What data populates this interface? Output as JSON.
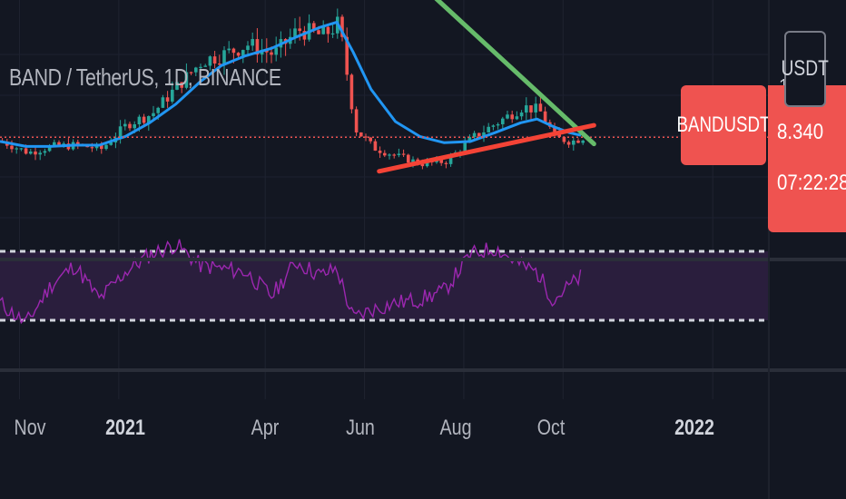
{
  "header": {
    "symbol_title": "BAND / TetherUS, 1D, BINANCE",
    "currency": "USDT",
    "ticker": "BANDUSDT",
    "last_price": "8.340",
    "countdown": "07:22:28",
    "scale_label": "1"
  },
  "colors": {
    "background": "#131722",
    "candle_up": "#26a69a",
    "candle_down": "#ef5350",
    "ma_line": "#2196f3",
    "resistance_line": "#66bb6a",
    "support_line": "#f44336",
    "rsi_line": "#9c27b0",
    "rsi_band": "#2a1e3d",
    "price_line": "#ef5350"
  },
  "chart_data": [
    {
      "type": "line",
      "title": "BAND / TetherUS, 1D, BINANCE",
      "x_ticks": [
        "Nov",
        "2021",
        "Apr",
        "Jun",
        "Aug",
        "Oct",
        "2022"
      ],
      "series": [
        {
          "name": "",
          "kind": "price",
          "x": [
            "2020-10-20",
            "2020-11-05",
            "2020-11-20",
            "2020-12-05",
            "2020-12-20",
            "2021-01-05",
            "2021-01-20",
            "2021-02-05",
            "2021-02-20",
            "2021-03-05",
            "2021-03-20",
            "2021-04-05",
            "2021-04-20",
            "2021-05-05",
            "2021-05-15",
            "2021-05-25",
            "2021-06-05",
            "2021-06-20",
            "2021-07-05",
            "2021-07-20",
            "2021-08-05",
            "2021-08-20",
            "2021-09-05",
            "2021-09-15",
            "2021-09-25",
            "2021-10-05",
            "2021-10-12"
          ],
          "values": [
            8.0,
            7.1,
            7.6,
            7.7,
            7.4,
            9.4,
            10.2,
            12.5,
            14.5,
            15.0,
            15.8,
            15.0,
            17.0,
            16.5,
            17.5,
            9.0,
            7.5,
            6.8,
            6.2,
            6.4,
            8.3,
            9.5,
            10.8,
            10.5,
            8.3,
            8.0,
            8.34
          ]
        },
        {
          "name": "",
          "kind": "moving-average",
          "x": [
            "2020-10-20",
            "2020-11-05",
            "2020-11-20",
            "2020-12-05",
            "2020-12-20",
            "2021-01-05",
            "2021-01-20",
            "2021-02-05",
            "2021-02-20",
            "2021-03-05",
            "2021-03-20",
            "2021-04-05",
            "2021-04-20",
            "2021-05-05",
            "2021-05-15",
            "2021-05-25",
            "2021-06-05",
            "2021-06-20",
            "2021-07-05",
            "2021-07-20",
            "2021-08-05",
            "2021-08-20",
            "2021-09-05",
            "2021-09-15",
            "2021-09-25",
            "2021-10-05",
            "2021-10-12"
          ],
          "values": [
            8.0,
            7.6,
            7.6,
            7.7,
            7.7,
            8.4,
            9.5,
            11.0,
            12.8,
            14.1,
            14.9,
            15.5,
            16.4,
            17.2,
            17.6,
            15.2,
            12.2,
            9.6,
            8.4,
            7.9,
            8.0,
            8.7,
            9.5,
            9.8,
            9.2,
            8.7,
            8.5
          ]
        }
      ],
      "annotations": [
        {
          "name": "",
          "kind": "descending-trendline",
          "x": [
            "2021-07-15",
            "2021-10-20"
          ],
          "values": [
            19.5,
            7.8
          ]
        },
        {
          "name": "",
          "kind": "ascending-trendline",
          "x": [
            "2021-06-10",
            "2021-10-20"
          ],
          "values": [
            5.6,
            9.3
          ]
        },
        {
          "name": "",
          "kind": "last-price-line",
          "value": 8.34
        }
      ]
    },
    {
      "type": "line",
      "title": "",
      "ylim": [
        0,
        100
      ],
      "bands": [
        70,
        30
      ],
      "series": [
        {
          "name": "",
          "kind": "rsi",
          "x": [
            "2020-10-20",
            "2020-11-05",
            "2020-11-20",
            "2020-12-05",
            "2020-12-20",
            "2021-01-05",
            "2021-01-20",
            "2021-02-05",
            "2021-02-20",
            "2021-03-05",
            "2021-03-20",
            "2021-04-05",
            "2021-04-20",
            "2021-05-05",
            "2021-05-15",
            "2021-05-25",
            "2021-06-05",
            "2021-06-20",
            "2021-07-05",
            "2021-07-20",
            "2021-08-05",
            "2021-08-20",
            "2021-09-05",
            "2021-09-15",
            "2021-09-25",
            "2021-10-05",
            "2021-10-12"
          ],
          "values": [
            40,
            28,
            50,
            62,
            42,
            58,
            68,
            74,
            62,
            60,
            58,
            44,
            64,
            56,
            60,
            31,
            36,
            40,
            42,
            47,
            68,
            72,
            62,
            58,
            42,
            50,
            55
          ]
        }
      ]
    }
  ]
}
